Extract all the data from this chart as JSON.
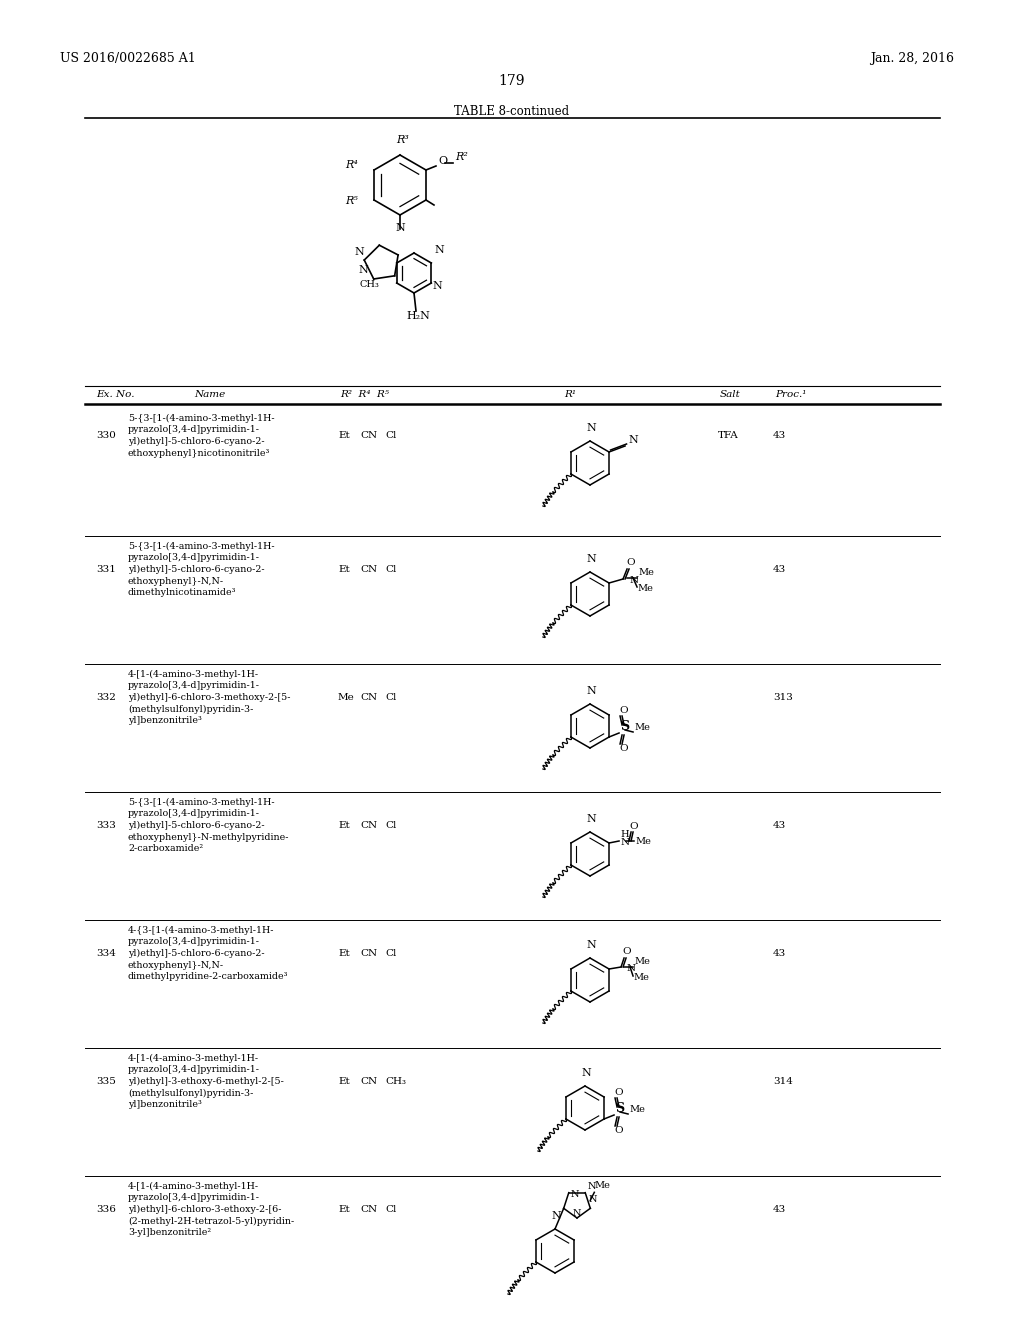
{
  "page_header_left": "US 2016/0022685 A1",
  "page_header_right": "Jan. 28, 2016",
  "page_number": "179",
  "table_title": "TABLE 8-continued",
  "bg": "#ffffff",
  "rows": [
    {
      "ex_no": "330",
      "name": [
        "5-{3-[1-(4-amino-3-methyl-1H-",
        "pyrazolo[3,4-d]pyrimidin-1-",
        "yl)ethyl]-5-chloro-6-cyano-2-",
        "ethoxyphenyl}nicotinonitrile³"
      ],
      "r2": "Et",
      "r4": "CN",
      "r5": "Cl",
      "salt": "TFA",
      "proc": "43",
      "struct": "330"
    },
    {
      "ex_no": "331",
      "name": [
        "5-{3-[1-(4-amino-3-methyl-1H-",
        "pyrazolo[3,4-d]pyrimidin-1-",
        "yl)ethyl]-5-chloro-6-cyano-2-",
        "ethoxyphenyl}-N,N-",
        "dimethylnicotinamide³"
      ],
      "r2": "Et",
      "r4": "CN",
      "r5": "Cl",
      "salt": "",
      "proc": "43",
      "struct": "331"
    },
    {
      "ex_no": "332",
      "name": [
        "4-[1-(4-amino-3-methyl-1H-",
        "pyrazolo[3,4-d]pyrimidin-1-",
        "yl)ethyl]-6-chloro-3-methoxy-2-[5-",
        "(methylsulfonyl)pyridin-3-",
        "yl]benzonitrile³"
      ],
      "r2": "Me",
      "r4": "CN",
      "r5": "Cl",
      "salt": "",
      "proc": "313",
      "struct": "332"
    },
    {
      "ex_no": "333",
      "name": [
        "5-{3-[1-(4-amino-3-methyl-1H-",
        "pyrazolo[3,4-d]pyrimidin-1-",
        "yl)ethyl]-5-chloro-6-cyano-2-",
        "ethoxyphenyl}-N-methylpyridine-",
        "2-carboxamide²"
      ],
      "r2": "Et",
      "r4": "CN",
      "r5": "Cl",
      "salt": "",
      "proc": "43",
      "struct": "333"
    },
    {
      "ex_no": "334",
      "name": [
        "4-{3-[1-(4-amino-3-methyl-1H-",
        "pyrazolo[3,4-d]pyrimidin-1-",
        "yl)ethyl]-5-chloro-6-cyano-2-",
        "ethoxyphenyl}-N,N-",
        "dimethylpyridine-2-carboxamide³"
      ],
      "r2": "Et",
      "r4": "CN",
      "r5": "Cl",
      "salt": "",
      "proc": "43",
      "struct": "334"
    },
    {
      "ex_no": "335",
      "name": [
        "4-[1-(4-amino-3-methyl-1H-",
        "pyrazolo[3,4-d]pyrimidin-1-",
        "yl)ethyl]-3-ethoxy-6-methyl-2-[5-",
        "(methylsulfonyl)pyridin-3-",
        "yl]benzonitrile³"
      ],
      "r2": "Et",
      "r4": "CN",
      "r5": "CH₃",
      "salt": "",
      "proc": "314",
      "struct": "335"
    },
    {
      "ex_no": "336",
      "name": [
        "4-[1-(4-amino-3-methyl-1H-",
        "pyrazolo[3,4-d]pyrimidin-1-",
        "yl)ethyl]-6-chloro-3-ethoxy-2-[6-",
        "(2-methyl-2H-tetrazol-5-yl)pyridin-",
        "3-yl]benzonitrile²"
      ],
      "r2": "Et",
      "r4": "CN",
      "r5": "Cl",
      "salt": "",
      "proc": "43",
      "struct": "336"
    }
  ]
}
